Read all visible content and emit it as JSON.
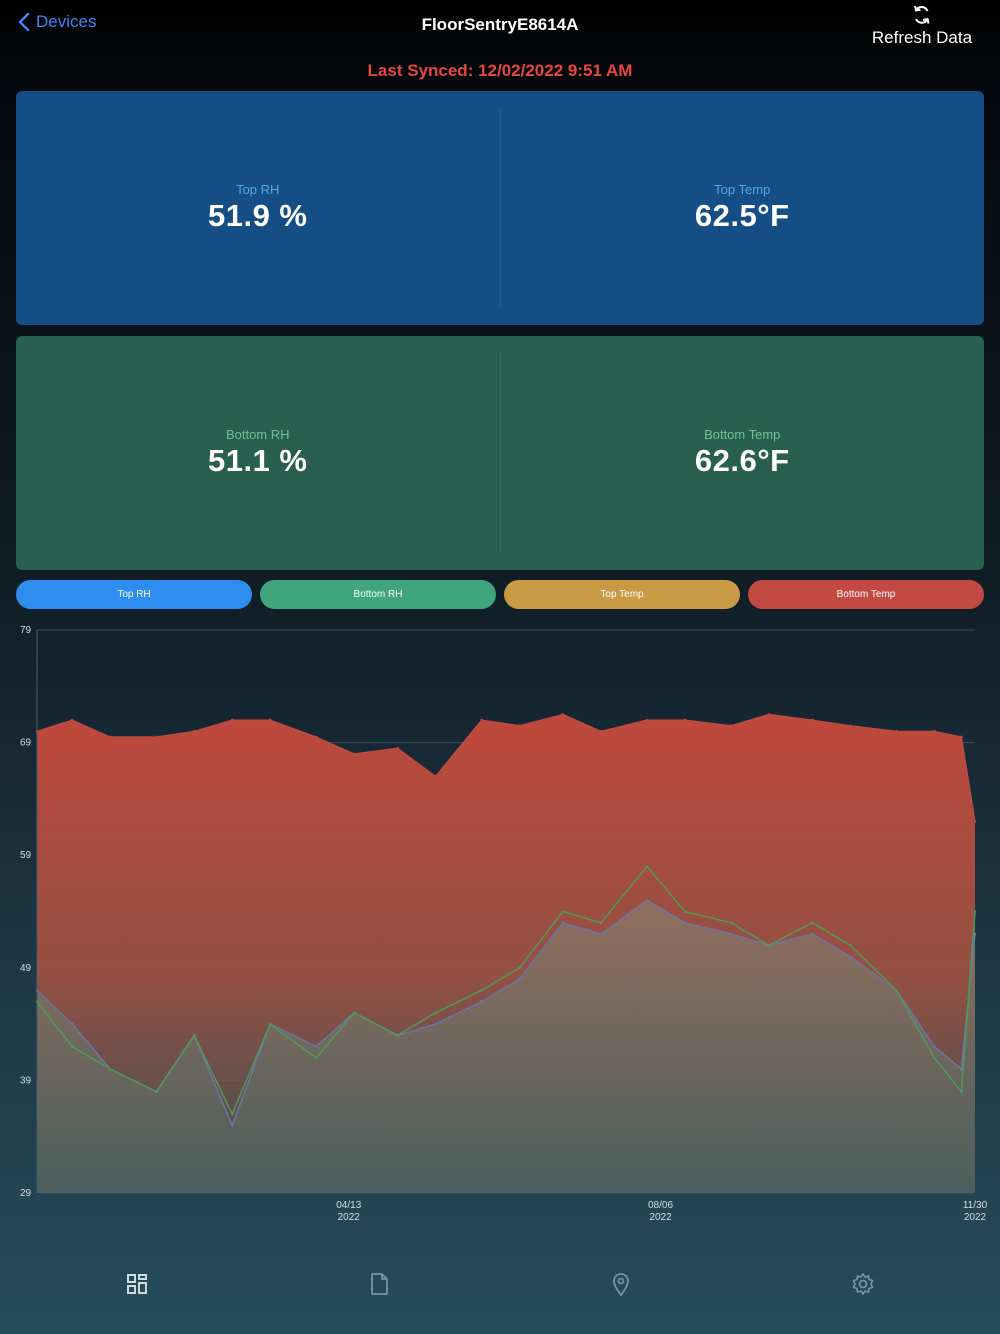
{
  "nav": {
    "back_label": "Devices",
    "title": "FloorSentryE8614A",
    "refresh_label": "Refresh Data"
  },
  "last_synced": "Last Synced: 12/02/2022 9:51 AM",
  "readings": {
    "top_rh": {
      "label": "Top RH",
      "value": "51.9 %"
    },
    "top_temp": {
      "label": "Top Temp",
      "value": "62.5°F"
    },
    "bottom_rh": {
      "label": "Bottom RH",
      "value": "51.1 %"
    },
    "bottom_temp": {
      "label": "Bottom Temp",
      "value": "62.6°F"
    }
  },
  "series_toggles": [
    {
      "label": "Top RH",
      "color": "#2e8ef0"
    },
    {
      "label": "Bottom RH",
      "color": "#3fa57c"
    },
    {
      "label": "Top Temp",
      "color": "#c99a44"
    },
    {
      "label": "Bottom Temp",
      "color": "#c24a43"
    }
  ],
  "chart_data": {
    "type": "area",
    "y_ticks": [
      "79",
      "69",
      "59",
      "49",
      "39",
      "29"
    ],
    "ylim": [
      29,
      79
    ],
    "x_ticks": [
      {
        "date": "2022-04-13",
        "line1": "04/13",
        "line2": "2022"
      },
      {
        "date": "2022-08-06",
        "line1": "08/06",
        "line2": "2022"
      },
      {
        "date": "2022-11-30",
        "line1": "11/30",
        "line2": "2022"
      }
    ],
    "grid": true,
    "series": [
      {
        "name": "Bottom Temp",
        "color": "#c24a43",
        "x": [
          "2021-12-19",
          "2022-01-01",
          "2022-01-15",
          "2022-02-01",
          "2022-02-15",
          "2022-03-01",
          "2022-03-15",
          "2022-04-01",
          "2022-04-15",
          "2022-05-01",
          "2022-05-15",
          "2022-06-01",
          "2022-06-15",
          "2022-07-01",
          "2022-07-15",
          "2022-08-01",
          "2022-08-15",
          "2022-09-01",
          "2022-09-15",
          "2022-10-01",
          "2022-10-15",
          "2022-11-01",
          "2022-11-15",
          "2022-11-25",
          "2022-11-30"
        ],
        "y": [
          70,
          71,
          69.5,
          69.5,
          70,
          71,
          71,
          69.5,
          68,
          68.5,
          66,
          71,
          70.5,
          71.5,
          70,
          71,
          71,
          70.5,
          71.5,
          71,
          70.5,
          70,
          70,
          69.5,
          62
        ]
      },
      {
        "name": "Top RH",
        "color": "#6e74a8",
        "x": [
          "2021-12-19",
          "2022-01-01",
          "2022-01-15",
          "2022-02-01",
          "2022-02-15",
          "2022-03-01",
          "2022-03-15",
          "2022-04-01",
          "2022-04-15",
          "2022-05-01",
          "2022-05-15",
          "2022-06-01",
          "2022-06-15",
          "2022-07-01",
          "2022-07-15",
          "2022-08-01",
          "2022-08-15",
          "2022-09-01",
          "2022-09-15",
          "2022-10-01",
          "2022-10-15",
          "2022-11-01",
          "2022-11-15",
          "2022-11-25",
          "2022-11-30"
        ],
        "y": [
          47,
          44,
          40,
          38,
          43,
          35,
          44,
          42,
          45,
          43,
          44,
          46,
          48,
          53,
          52,
          55,
          53,
          52,
          51,
          52,
          50,
          47,
          42,
          40,
          52
        ]
      },
      {
        "name": "Bottom RH",
        "color": "#4f9a5a",
        "x": [
          "2021-12-19",
          "2022-01-01",
          "2022-01-15",
          "2022-02-01",
          "2022-02-15",
          "2022-03-01",
          "2022-03-15",
          "2022-04-01",
          "2022-04-15",
          "2022-05-01",
          "2022-05-15",
          "2022-06-01",
          "2022-06-15",
          "2022-07-01",
          "2022-07-15",
          "2022-08-01",
          "2022-08-15",
          "2022-09-01",
          "2022-09-15",
          "2022-10-01",
          "2022-10-15",
          "2022-11-01",
          "2022-11-15",
          "2022-11-25",
          "2022-11-30"
        ],
        "y": [
          46,
          42,
          40,
          38,
          43,
          36,
          44,
          41,
          45,
          43,
          45,
          47,
          49,
          54,
          53,
          58,
          54,
          53,
          51,
          53,
          51,
          47,
          41,
          38,
          54
        ]
      }
    ]
  },
  "tabbar": [
    {
      "icon": "dashboard-grid-icon"
    },
    {
      "icon": "document-icon"
    },
    {
      "icon": "location-pin-icon"
    },
    {
      "icon": "gear-icon"
    }
  ]
}
